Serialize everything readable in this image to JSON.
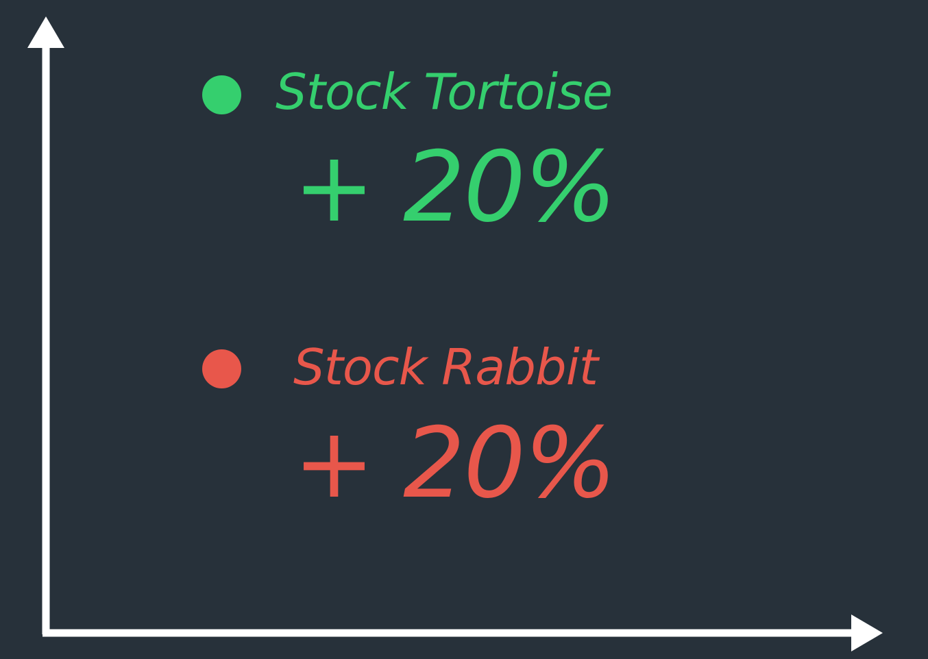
{
  "colors": {
    "background": "#27313a",
    "axis": "#ffffff",
    "tortoise": "#35cf6e",
    "rabbit": "#e8574b"
  },
  "stocks": [
    {
      "label": "Stock Tortoise",
      "change": "+ 20%"
    },
    {
      "label": "Stock Rabbit",
      "change": "+ 20%"
    }
  ]
}
